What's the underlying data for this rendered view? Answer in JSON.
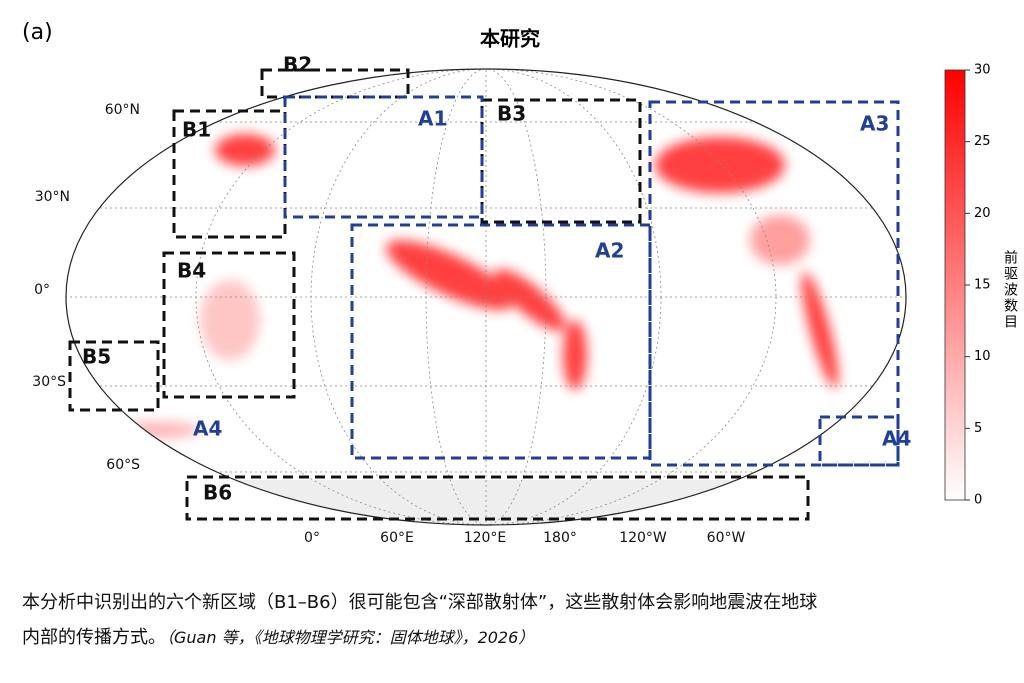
{
  "panel_label": "(a)",
  "title": "本研究",
  "regions": [
    {
      "label": "B1"
    },
    {
      "label": "B2"
    },
    {
      "label": "B3"
    },
    {
      "label": "B4"
    },
    {
      "label": "B5"
    },
    {
      "label": "B6"
    },
    {
      "label": "A1"
    },
    {
      "label": "A2"
    },
    {
      "label": "A3"
    },
    {
      "label": "A4"
    },
    {
      "label": "A4"
    }
  ],
  "lat_labels": [
    "60°N",
    "30°N",
    "0°",
    "30°S",
    "60°S"
  ],
  "lon_labels": [
    "0°",
    "60°E",
    "120°E",
    "180°",
    "120°W",
    "60°W"
  ],
  "colorbar": {
    "label": "前驱波数目",
    "lim": [
      0,
      30
    ],
    "ticks": [
      0,
      5,
      10,
      15,
      20,
      25,
      30
    ]
  },
  "caption": {
    "lines": [
      "本分析中识别出的六个新区域（B1–B6）很可能包含“深部散射体”，这些散射体会影响地震波在地球",
      "内部的传播方式。"
    ],
    "citation": "（Guan 等，《地球物理学研究：固体地球》，2026）"
  }
}
